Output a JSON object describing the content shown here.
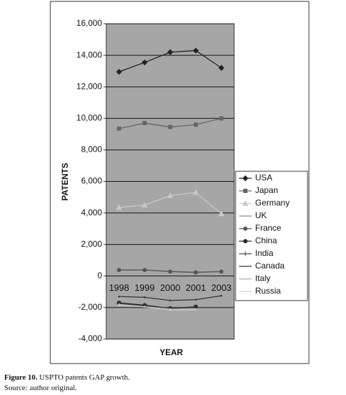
{
  "chart_data": {
    "type": "line",
    "x_label": "YEAR",
    "y_label": "PATENTS",
    "categories": [
      "1998",
      "1999",
      "2000",
      "2001",
      "2003"
    ],
    "ylim": [
      -4000,
      16000
    ],
    "yticks": [
      {
        "value": -4000,
        "label": "-4,000"
      },
      {
        "value": -2000,
        "label": "-2,000"
      },
      0,
      {
        "value": 2000,
        "label": "2,000"
      },
      {
        "value": 4000,
        "label": "4,000"
      },
      {
        "value": 6000,
        "label": "6,000"
      },
      {
        "value": 8000,
        "label": "8,000"
      },
      {
        "value": 10000,
        "label": "10,000"
      },
      {
        "value": 12000,
        "label": "12,000"
      },
      {
        "value": 14000,
        "label": "14,000"
      },
      {
        "value": 16000,
        "label": "16,000"
      }
    ],
    "grid": true,
    "legend": "right",
    "series": [
      {
        "name": "USA",
        "color": "#222222",
        "marker": "diamond",
        "values": [
          12950,
          13550,
          14200,
          14300,
          13200
        ]
      },
      {
        "name": "Japan",
        "color": "#666666",
        "marker": "square",
        "values": [
          9350,
          9700,
          9450,
          9600,
          10000
        ]
      },
      {
        "name": "Germany",
        "color": "#c8c8c8",
        "marker": "triangle",
        "values": [
          4350,
          4500,
          5100,
          5300,
          3950
        ]
      },
      {
        "name": "UK",
        "color": "#888888",
        "marker": "none",
        "values": [
          400,
          400,
          300,
          250,
          300
        ]
      },
      {
        "name": "France",
        "color": "#555555",
        "marker": "circle",
        "values": [
          380,
          380,
          280,
          230,
          280
        ]
      },
      {
        "name": "China",
        "color": "#222222",
        "marker": "circle",
        "values": [
          -1700,
          -1850,
          -2050,
          -1950,
          null
        ]
      },
      {
        "name": "India",
        "color": "#444444",
        "marker": "plus",
        "values": [
          -1750,
          -1900,
          -2050,
          -2000,
          null
        ]
      },
      {
        "name": "Canada",
        "color": "#333333",
        "marker": "none",
        "values": [
          -1300,
          -1350,
          -1550,
          -1500,
          -1250
        ]
      },
      {
        "name": "Italy",
        "color": "#aaaaaa",
        "marker": "none",
        "values": [
          -1800,
          -1950,
          -2100,
          -2100,
          null
        ]
      },
      {
        "name": "Russia",
        "color": "#d0d0d0",
        "marker": "none",
        "values": [
          -1850,
          -1950,
          -2150,
          -2150,
          null
        ]
      }
    ]
  },
  "figure_label": "Figure 10.",
  "caption": "USPTO patents GAP growth.",
  "source": "Source: author original."
}
